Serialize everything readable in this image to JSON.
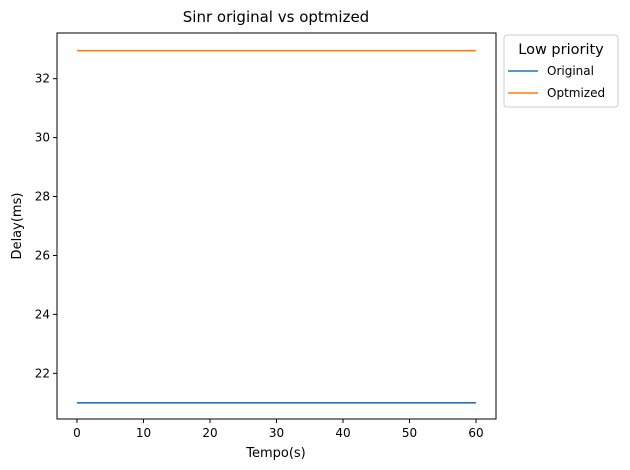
{
  "chart_data": {
    "type": "line",
    "title": "Sinr original vs optmized",
    "xlabel": "Tempo(s)",
    "ylabel": "Delay(ms)",
    "xlim": [
      -3,
      63
    ],
    "ylim": [
      20.45,
      33.55
    ],
    "xticks": [
      0,
      10,
      20,
      30,
      40,
      50,
      60
    ],
    "yticks": [
      22,
      24,
      26,
      28,
      30,
      32
    ],
    "grid": false,
    "legend": {
      "title": "Low priority",
      "placement": "outside-top-right"
    },
    "series": [
      {
        "name": "Original",
        "color": "#1f77b4",
        "x": [
          0,
          60
        ],
        "y": [
          21.0,
          21.0
        ]
      },
      {
        "name": "Optmized",
        "color": "#ff7f0e",
        "x": [
          0,
          60
        ],
        "y": [
          32.95,
          32.95
        ]
      }
    ]
  }
}
